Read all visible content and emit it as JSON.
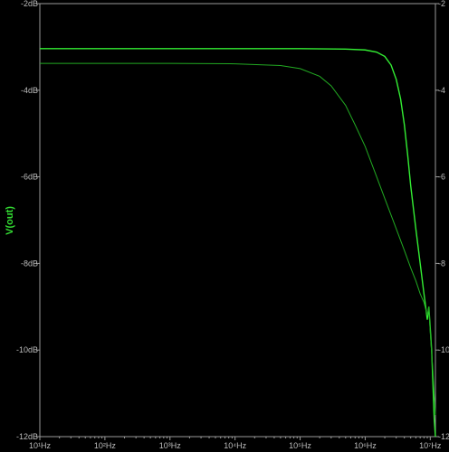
{
  "chart_data": {
    "type": "line",
    "title": "",
    "xlabel": "",
    "ylabel": "V(out)",
    "x_scale": "log",
    "xlim": [
      10,
      12000000
    ],
    "ylim": [
      -12,
      -2
    ],
    "grid": false,
    "legend": "none",
    "x_ticks": [
      "10¹Hz",
      "10²Hz",
      "10³Hz",
      "10⁴Hz",
      "10⁵Hz",
      "10⁶Hz",
      "10⁷Hz"
    ],
    "x_tick_values": [
      10,
      100,
      1000,
      10000,
      100000,
      1000000,
      10000000
    ],
    "y_ticks": [
      "-2dB",
      "-4dB",
      "-6dB",
      "-8dB",
      "-10dB",
      "-12dB"
    ],
    "y_tick_values": [
      -2,
      -4,
      -6,
      -8,
      -10,
      -12
    ],
    "right_ticks": [
      "2",
      "4",
      "6",
      "8",
      "10",
      "12"
    ],
    "series": [
      {
        "color": "#33ee33",
        "points": [
          [
            10,
            -3.04
          ],
          [
            1000,
            -3.04
          ],
          [
            100000,
            -3.04
          ],
          [
            500000,
            -3.05
          ],
          [
            1000000,
            -3.07
          ],
          [
            1500000,
            -3.12
          ],
          [
            2000000,
            -3.22
          ],
          [
            2500000,
            -3.42
          ],
          [
            3000000,
            -3.75
          ],
          [
            3500000,
            -4.2
          ],
          [
            4000000,
            -4.8
          ],
          [
            4500000,
            -5.5
          ],
          [
            5000000,
            -6.2
          ],
          [
            6000000,
            -7.2
          ],
          [
            7000000,
            -8.0
          ],
          [
            8000000,
            -8.7
          ],
          [
            8500000,
            -9.0
          ],
          [
            9000000,
            -9.3
          ],
          [
            9500000,
            -9.0
          ],
          [
            10000000,
            -9.5
          ],
          [
            10500000,
            -10.0
          ],
          [
            11000000,
            -10.8
          ],
          [
            11500000,
            -11.6
          ],
          [
            12000000,
            -12.0
          ]
        ]
      },
      {
        "color": "#22aa22",
        "points": [
          [
            10,
            -3.38
          ],
          [
            1000,
            -3.38
          ],
          [
            10000,
            -3.39
          ],
          [
            50000,
            -3.43
          ],
          [
            100000,
            -3.5
          ],
          [
            200000,
            -3.68
          ],
          [
            300000,
            -3.9
          ],
          [
            500000,
            -4.35
          ],
          [
            700000,
            -4.8
          ],
          [
            1000000,
            -5.3
          ],
          [
            1500000,
            -6.0
          ],
          [
            2000000,
            -6.5
          ],
          [
            3000000,
            -7.2
          ],
          [
            4000000,
            -7.7
          ],
          [
            5000000,
            -8.1
          ],
          [
            6000000,
            -8.4
          ],
          [
            7000000,
            -8.7
          ],
          [
            8000000,
            -8.9
          ],
          [
            9000000,
            -9.2
          ],
          [
            9500000,
            -9.0
          ],
          [
            10000000,
            -9.6
          ],
          [
            11000000,
            -10.5
          ],
          [
            12000000,
            -11.5
          ]
        ]
      }
    ]
  }
}
